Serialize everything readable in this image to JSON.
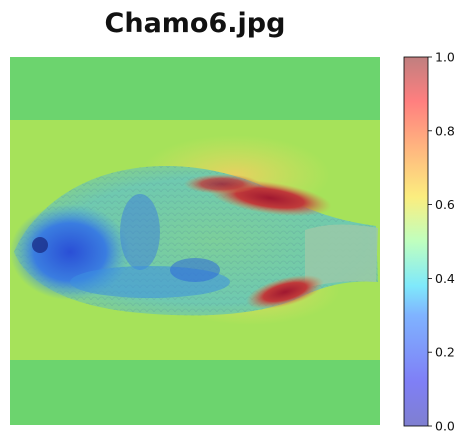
{
  "title": "Chamo6.jpg",
  "chart_data": {
    "type": "heatmap",
    "title": "Chamo6.jpg",
    "image_subject": "fish photograph with saliency heatmap overlay",
    "colormap": "jet",
    "overlay_alpha": 0.5,
    "colorbar": {
      "range": [
        0.0,
        1.0
      ],
      "ticks": [
        0.0,
        0.2,
        0.4,
        0.6,
        0.8,
        1.0
      ],
      "tick_labels": [
        "0.0",
        "0.2",
        "0.4",
        "0.6",
        "0.8",
        "1.0"
      ],
      "position": "right"
    },
    "regions": [
      {
        "name": "background-band",
        "value": 0.45
      },
      {
        "name": "photo-background",
        "value": 0.55
      },
      {
        "name": "fish-head",
        "value": 0.25
      },
      {
        "name": "fish-belly",
        "value": 0.3
      },
      {
        "name": "dorsal-fin",
        "value": 0.9
      },
      {
        "name": "anal-fin",
        "value": 0.85
      },
      {
        "name": "tail",
        "value": 0.5
      }
    ]
  }
}
